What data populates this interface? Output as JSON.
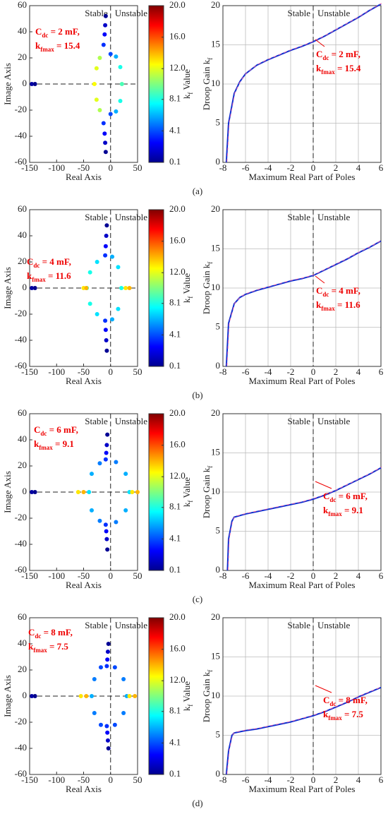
{
  "panel_labels": [
    "(a)",
    "(b)",
    "(c)",
    "(d)"
  ],
  "chart_data": [
    {
      "type": "scatter",
      "xlabel": "Real Axis",
      "ylabel": "Image Axis",
      "xlim": [
        -150,
        50
      ],
      "ylim": [
        -60,
        60
      ],
      "xticks": [
        -150,
        -100,
        -50,
        0,
        50
      ],
      "yticks": [
        -60,
        -40,
        -20,
        0,
        20,
        40,
        60
      ],
      "colormap": "jet",
      "colorbar": {
        "label": [
          "k",
          "f",
          " Value"
        ],
        "lim": [
          0.1,
          20
        ],
        "ticks": [
          0.1,
          4.1,
          8.1,
          {
            "value": 12,
            "label": "12.0"
          },
          {
            "value": 16,
            "label": "16.0"
          },
          {
            "value": 20,
            "label": "20.0"
          }
        ]
      },
      "regions": [
        "Stable",
        "Unstable"
      ],
      "annotation": [
        [
          "C",
          "dc",
          " = 2 mF,"
        ],
        [
          "k",
          "fmax",
          " = 15.4"
        ]
      ],
      "x": [
        -140,
        -146,
        -9,
        -10,
        -11,
        -13,
        -9,
        -10,
        -11,
        -13,
        -20,
        -26,
        -30,
        -26,
        -20,
        0,
        10,
        18,
        21,
        18,
        10,
        0
      ],
      "values": [
        0,
        0,
        52,
        45,
        38,
        30,
        -52,
        -45,
        -38,
        -30,
        20,
        12,
        0,
        -12,
        -20,
        23,
        21,
        13,
        0,
        -13,
        -21,
        -23
      ],
      "kf": [
        0.3,
        0.8,
        0.5,
        1.5,
        2.5,
        3.5,
        0.5,
        1.5,
        2.5,
        3.5,
        11,
        12,
        12.5,
        12,
        11,
        4,
        6,
        8,
        9,
        8,
        6,
        4
      ]
    },
    {
      "type": "line",
      "xlabel": "Maximum Real Part of Poles",
      "ylabel": [
        "Droop Gain k",
        "f"
      ],
      "xlim": [
        -8,
        6
      ],
      "ylim": [
        0,
        20
      ],
      "xticks": [
        -8,
        -6,
        -4,
        -2,
        0,
        2,
        4,
        6
      ],
      "yticks": [
        0,
        5,
        10,
        15,
        20
      ],
      "grid": true,
      "regions": [
        "Stable",
        "Unstable"
      ],
      "annotation": [
        [
          "C",
          "dc",
          " = 2 mF,"
        ],
        [
          "k",
          "fmax",
          " = 15.4"
        ]
      ],
      "x": [
        -7.7,
        -7.5,
        -7,
        -6.5,
        -6,
        -5,
        -4,
        -3,
        -2,
        -1,
        0,
        1,
        2,
        3,
        4,
        5,
        6
      ],
      "series": [
        {
          "color": "#1030d0",
          "values": [
            0,
            5,
            8.8,
            10.3,
            11.3,
            12.4,
            13.1,
            13.7,
            14.3,
            14.8,
            15.4,
            16.1,
            16.9,
            17.7,
            18.5,
            19.4,
            20.2
          ]
        }
      ]
    },
    {
      "type": "scatter",
      "xlabel": "Real Axis",
      "ylabel": "Image Axis",
      "xlim": [
        -150,
        50
      ],
      "ylim": [
        -60,
        60
      ],
      "xticks": [
        -150,
        -100,
        -50,
        0,
        50
      ],
      "yticks": [
        -60,
        -40,
        -20,
        0,
        20,
        40,
        60
      ],
      "colormap": "jet",
      "colorbar": {
        "label": [
          "k",
          "f",
          " Value"
        ],
        "lim": [
          0.1,
          20
        ],
        "ticks": [
          0.1,
          4.1,
          8.1,
          {
            "value": 12,
            "label": "12.0"
          },
          {
            "value": 16,
            "label": "16.0"
          },
          {
            "value": 20,
            "label": "20.0"
          }
        ]
      },
      "regions": [
        "Stable",
        "Unstable"
      ],
      "annotation": [
        [
          "C",
          "dc",
          " = 4 mF,"
        ],
        [
          "k",
          "fmax",
          " = 11.6"
        ]
      ],
      "x": [
        -140,
        -146,
        -7,
        -8,
        -9,
        -10,
        -7,
        -8,
        -9,
        -10,
        -25,
        -38,
        -44,
        -38,
        -25,
        3,
        14,
        20,
        14,
        3,
        -50,
        -45,
        28,
        35
      ],
      "values": [
        0,
        0,
        48,
        40,
        32,
        25,
        -48,
        -40,
        -32,
        -25,
        20,
        12,
        0,
        -12,
        -20,
        24,
        16,
        0,
        -16,
        -24,
        0,
        0,
        0,
        0
      ],
      "kf": [
        0.3,
        0.8,
        0.5,
        1.5,
        2.5,
        3.5,
        0.5,
        1.5,
        2.5,
        3.5,
        7,
        8,
        9,
        8,
        7,
        6,
        7,
        8,
        7,
        6,
        13,
        14,
        13,
        14
      ]
    },
    {
      "type": "line",
      "xlabel": "Maximum Real Part of Poles",
      "ylabel": [
        "Droop Gain k",
        "f"
      ],
      "xlim": [
        -8,
        6
      ],
      "ylim": [
        0,
        20
      ],
      "xticks": [
        -8,
        -6,
        -4,
        -2,
        0,
        2,
        4,
        6
      ],
      "yticks": [
        0,
        5,
        10,
        15,
        20
      ],
      "grid": true,
      "regions": [
        "Stable",
        "Unstable"
      ],
      "annotation": [
        [
          "C",
          "dc",
          " = 4 mF,"
        ],
        [
          "k",
          "fmax",
          " = 11.6"
        ]
      ],
      "x": [
        -7.7,
        -7.5,
        -7,
        -6.5,
        -6,
        -5,
        -4,
        -3,
        -2,
        -1,
        0,
        1,
        2,
        3,
        4,
        5,
        6
      ],
      "series": [
        {
          "color": "#1030d0",
          "values": [
            0,
            5.5,
            8,
            8.8,
            9.2,
            9.7,
            10.1,
            10.5,
            10.9,
            11.2,
            11.6,
            12.3,
            13,
            13.7,
            14.5,
            15.2,
            16
          ]
        }
      ]
    },
    {
      "type": "scatter",
      "xlabel": "Real Axis",
      "ylabel": "Image Axis",
      "xlim": [
        -150,
        50
      ],
      "ylim": [
        -60,
        60
      ],
      "xticks": [
        -150,
        -100,
        -50,
        0,
        50
      ],
      "yticks": [
        -60,
        -40,
        -20,
        0,
        20,
        40,
        60
      ],
      "colormap": "jet",
      "colorbar": {
        "label": [
          "k",
          "f",
          " Value"
        ],
        "lim": [
          0.1,
          20
        ],
        "ticks": [
          0.1,
          4.1,
          8.1,
          {
            "value": 12,
            "label": "12.0"
          },
          {
            "value": 16,
            "label": "16.0"
          },
          {
            "value": 20,
            "label": "20.0"
          }
        ]
      },
      "regions": [
        "Stable",
        "Unstable"
      ],
      "annotation": [
        [
          "C",
          "dc",
          " = 6 mF,"
        ],
        [
          "k",
          "fmax",
          " = 9.1"
        ]
      ],
      "x": [
        -140,
        -146,
        -6,
        -7,
        -8,
        -9,
        -6,
        -7,
        -8,
        -9,
        -20,
        -35,
        -40,
        -35,
        -20,
        10,
        28,
        35,
        28,
        10,
        -60,
        -50,
        40,
        50
      ],
      "values": [
        0,
        0,
        44,
        36,
        30,
        25,
        -44,
        -36,
        -30,
        -25,
        22,
        14,
        0,
        -14,
        -22,
        23,
        14,
        0,
        -14,
        -23,
        0,
        0,
        0,
        0
      ],
      "kf": [
        0.3,
        0.8,
        0.5,
        1.5,
        2.5,
        3.5,
        0.5,
        1.5,
        2.5,
        3.5,
        5,
        6,
        7,
        6,
        5,
        5,
        6,
        7,
        6,
        5,
        13,
        14,
        13,
        14
      ]
    },
    {
      "type": "line",
      "xlabel": "Maximum Real Part of Poles",
      "ylabel": [
        "Droop Gain k",
        "f"
      ],
      "xlim": [
        -8,
        6
      ],
      "ylim": [
        0,
        20
      ],
      "xticks": [
        -8,
        -6,
        -4,
        -2,
        0,
        2,
        4,
        6
      ],
      "yticks": [
        0,
        5,
        10,
        15,
        20
      ],
      "grid": true,
      "regions": [
        "Stable",
        "Unstable"
      ],
      "annotation": [
        [
          "C",
          "dc",
          " = 6 mF,"
        ],
        [
          "k",
          "fmax",
          " = 9.1"
        ]
      ],
      "x": [
        -7.6,
        -7.5,
        -7.2,
        -7,
        -6,
        -5,
        -4,
        -3,
        -2,
        -1,
        0,
        1,
        2,
        3,
        4,
        5,
        6
      ],
      "series": [
        {
          "color": "#1030d0",
          "values": [
            0,
            4,
            6.3,
            6.8,
            7.2,
            7.5,
            7.8,
            8.1,
            8.4,
            8.7,
            9.1,
            9.6,
            10.2,
            10.9,
            11.6,
            12.3,
            13.1
          ]
        }
      ]
    },
    {
      "type": "scatter",
      "xlabel": "Real Axis",
      "ylabel": "Image Axis",
      "xlim": [
        -150,
        50
      ],
      "ylim": [
        -60,
        60
      ],
      "xticks": [
        -150,
        -100,
        -50,
        0,
        50
      ],
      "yticks": [
        -60,
        -40,
        -20,
        0,
        20,
        40,
        60
      ],
      "colormap": "jet",
      "colorbar": {
        "label": [
          "k",
          "f",
          " Value"
        ],
        "lim": [
          0.1,
          20
        ],
        "ticks": [
          0.1,
          4.1,
          8.1,
          {
            "value": 12,
            "label": "12.0"
          },
          {
            "value": 16,
            "label": "16.0"
          },
          {
            "value": 20,
            "label": "20.0"
          }
        ]
      },
      "regions": [
        "Stable",
        "Unstable"
      ],
      "annotation": [
        [
          "C",
          "dc",
          " = 8 mF,"
        ],
        [
          "k",
          "fmax",
          " = 7.5"
        ]
      ],
      "x": [
        -140,
        -146,
        -4,
        -5,
        -6,
        -7,
        -4,
        -5,
        -6,
        -7,
        -18,
        -30,
        -35,
        -30,
        -18,
        8,
        24,
        30,
        24,
        8,
        -55,
        -45,
        35,
        45
      ],
      "values": [
        0,
        0,
        40,
        34,
        28,
        23,
        -40,
        -34,
        -28,
        -23,
        22,
        13,
        0,
        -13,
        -22,
        22,
        13,
        0,
        -13,
        -22,
        0,
        0,
        0,
        0
      ],
      "kf": [
        0.3,
        0.8,
        0.5,
        1.5,
        2.5,
        3.5,
        0.5,
        1.5,
        2.5,
        3.5,
        4,
        5,
        6,
        5,
        4,
        4,
        5,
        6,
        5,
        4,
        13,
        14,
        13,
        14
      ]
    },
    {
      "type": "line",
      "xlabel": "Maximum Real Part of Poles",
      "ylabel": [
        "Droop Gain k",
        "f"
      ],
      "xlim": [
        -8,
        6
      ],
      "ylim": [
        0,
        20
      ],
      "xticks": [
        -8,
        -6,
        -4,
        -2,
        0,
        2,
        4,
        6
      ],
      "yticks": [
        0,
        5,
        10,
        15,
        20
      ],
      "grid": true,
      "regions": [
        "Stable",
        "Unstable"
      ],
      "annotation": [
        [
          "C",
          "dc",
          " = 8 mF,"
        ],
        [
          "k",
          "fmax",
          " = 7.5"
        ]
      ],
      "x": [
        -7.7,
        -7.5,
        -7.2,
        -7,
        -6,
        -5,
        -4,
        -3,
        -2,
        -1,
        0,
        1,
        2,
        3,
        4,
        5,
        6
      ],
      "series": [
        {
          "color": "#1030d0",
          "values": [
            0,
            3,
            5,
            5.3,
            5.6,
            5.8,
            6.1,
            6.4,
            6.7,
            7.1,
            7.5,
            8,
            8.6,
            9.2,
            9.9,
            10.5,
            11.1
          ]
        }
      ]
    }
  ]
}
